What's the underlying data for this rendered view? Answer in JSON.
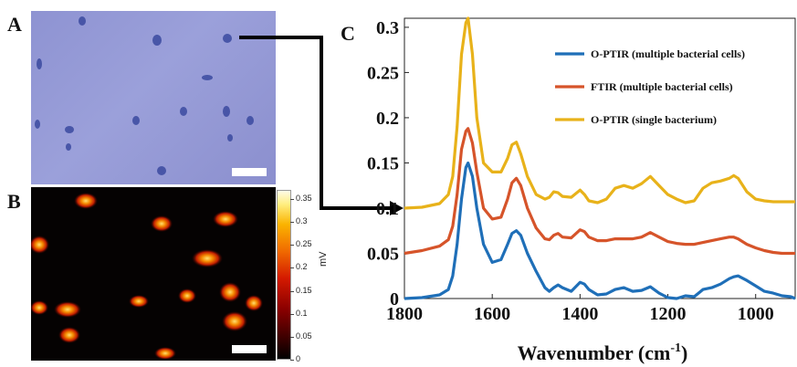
{
  "panels": {
    "a_label": "A",
    "b_label": "B",
    "c_label": "C"
  },
  "colorbar": {
    "unit": "mV",
    "ticks": [
      "0",
      "0.05",
      "0.1",
      "0.15",
      "0.2",
      "0.25",
      "0.3",
      "0.35"
    ],
    "tick_values": [
      0,
      0.05,
      0.1,
      0.15,
      0.2,
      0.25,
      0.3,
      0.35
    ],
    "max": 0.37
  },
  "colors": {
    "micro_bg": "#969bd6",
    "bacterium": "#3b4aa0",
    "heat_spot": "#e23a00",
    "heat_core": "#ffd23a",
    "o_ptir_multi": "#1f6fb8",
    "ftir_multi": "#d6542a",
    "o_ptir_single": "#e8b21a",
    "arrow": "#000000"
  },
  "chart_data": {
    "type": "line",
    "title": "",
    "xlabel": "Wavenumber (cm",
    "xlabel_sup": "-1",
    "xlabel_close": ")",
    "ylabel": "",
    "xlim": [
      1800,
      910
    ],
    "ylim": [
      0,
      0.31
    ],
    "x_reversed": true,
    "xticks": [
      1800,
      1600,
      1400,
      1200,
      1000
    ],
    "xtick_labels": [
      "1800",
      "1600",
      "1400",
      "1200",
      "1000"
    ],
    "yticks": [
      0,
      0.05,
      0.1,
      0.15,
      0.2,
      0.25,
      0.3
    ],
    "ytick_labels": [
      "0",
      "0.05",
      "0.1",
      "0.15",
      "0.2",
      "0.25",
      "0.3"
    ],
    "grid": false,
    "legend_position": "top-right",
    "series": [
      {
        "name": "O-PTIR (multiple bacterial cells)",
        "color": "#1f6fb8",
        "x": [
          1800,
          1760,
          1720,
          1700,
          1690,
          1680,
          1670,
          1660,
          1655,
          1645,
          1635,
          1620,
          1600,
          1580,
          1565,
          1555,
          1545,
          1535,
          1520,
          1500,
          1480,
          1470,
          1460,
          1450,
          1440,
          1420,
          1400,
          1390,
          1380,
          1360,
          1340,
          1320,
          1300,
          1280,
          1260,
          1240,
          1220,
          1200,
          1180,
          1160,
          1140,
          1120,
          1100,
          1080,
          1060,
          1050,
          1040,
          1020,
          1000,
          980,
          960,
          940,
          920,
          910
        ],
        "y": [
          0.0,
          0.001,
          0.004,
          0.01,
          0.025,
          0.06,
          0.11,
          0.145,
          0.15,
          0.135,
          0.1,
          0.06,
          0.04,
          0.043,
          0.06,
          0.072,
          0.075,
          0.07,
          0.05,
          0.03,
          0.012,
          0.008,
          0.012,
          0.015,
          0.012,
          0.008,
          0.018,
          0.016,
          0.01,
          0.004,
          0.005,
          0.01,
          0.012,
          0.008,
          0.009,
          0.013,
          0.006,
          0.001,
          0.0,
          0.003,
          0.002,
          0.01,
          0.012,
          0.016,
          0.022,
          0.024,
          0.025,
          0.02,
          0.014,
          0.008,
          0.006,
          0.003,
          0.002,
          0.0
        ]
      },
      {
        "name": "FTIR (multiple bacterial cells)",
        "color": "#d6542a",
        "x": [
          1800,
          1760,
          1720,
          1700,
          1690,
          1680,
          1670,
          1660,
          1655,
          1645,
          1635,
          1620,
          1600,
          1580,
          1565,
          1555,
          1545,
          1535,
          1520,
          1500,
          1480,
          1470,
          1460,
          1450,
          1440,
          1420,
          1400,
          1390,
          1380,
          1360,
          1340,
          1320,
          1300,
          1280,
          1260,
          1240,
          1220,
          1200,
          1180,
          1160,
          1140,
          1120,
          1100,
          1080,
          1060,
          1050,
          1040,
          1020,
          1000,
          980,
          960,
          940,
          920,
          910
        ],
        "y": [
          0.05,
          0.053,
          0.058,
          0.065,
          0.08,
          0.115,
          0.165,
          0.185,
          0.188,
          0.172,
          0.14,
          0.1,
          0.088,
          0.09,
          0.11,
          0.128,
          0.133,
          0.125,
          0.1,
          0.078,
          0.066,
          0.065,
          0.07,
          0.072,
          0.068,
          0.067,
          0.076,
          0.074,
          0.068,
          0.064,
          0.064,
          0.066,
          0.066,
          0.066,
          0.068,
          0.073,
          0.068,
          0.063,
          0.061,
          0.06,
          0.06,
          0.062,
          0.064,
          0.066,
          0.068,
          0.068,
          0.066,
          0.06,
          0.056,
          0.053,
          0.051,
          0.05,
          0.05,
          0.05
        ]
      },
      {
        "name": "O-PTIR (single bacterium)",
        "color": "#e8b21a",
        "x": [
          1800,
          1760,
          1720,
          1700,
          1690,
          1680,
          1670,
          1660,
          1655,
          1645,
          1635,
          1620,
          1600,
          1580,
          1565,
          1555,
          1545,
          1535,
          1520,
          1500,
          1480,
          1470,
          1460,
          1450,
          1440,
          1420,
          1400,
          1390,
          1380,
          1360,
          1340,
          1320,
          1300,
          1280,
          1260,
          1240,
          1220,
          1200,
          1180,
          1160,
          1140,
          1120,
          1100,
          1080,
          1060,
          1050,
          1040,
          1020,
          1000,
          980,
          960,
          940,
          920,
          910
        ],
        "y": [
          0.1,
          0.101,
          0.105,
          0.115,
          0.135,
          0.19,
          0.27,
          0.305,
          0.31,
          0.27,
          0.2,
          0.15,
          0.14,
          0.14,
          0.155,
          0.17,
          0.173,
          0.16,
          0.135,
          0.115,
          0.11,
          0.112,
          0.118,
          0.117,
          0.113,
          0.112,
          0.12,
          0.115,
          0.108,
          0.106,
          0.11,
          0.122,
          0.125,
          0.122,
          0.127,
          0.135,
          0.125,
          0.115,
          0.11,
          0.106,
          0.108,
          0.122,
          0.128,
          0.13,
          0.133,
          0.136,
          0.133,
          0.118,
          0.11,
          0.108,
          0.107,
          0.107,
          0.107,
          0.107
        ]
      }
    ]
  }
}
